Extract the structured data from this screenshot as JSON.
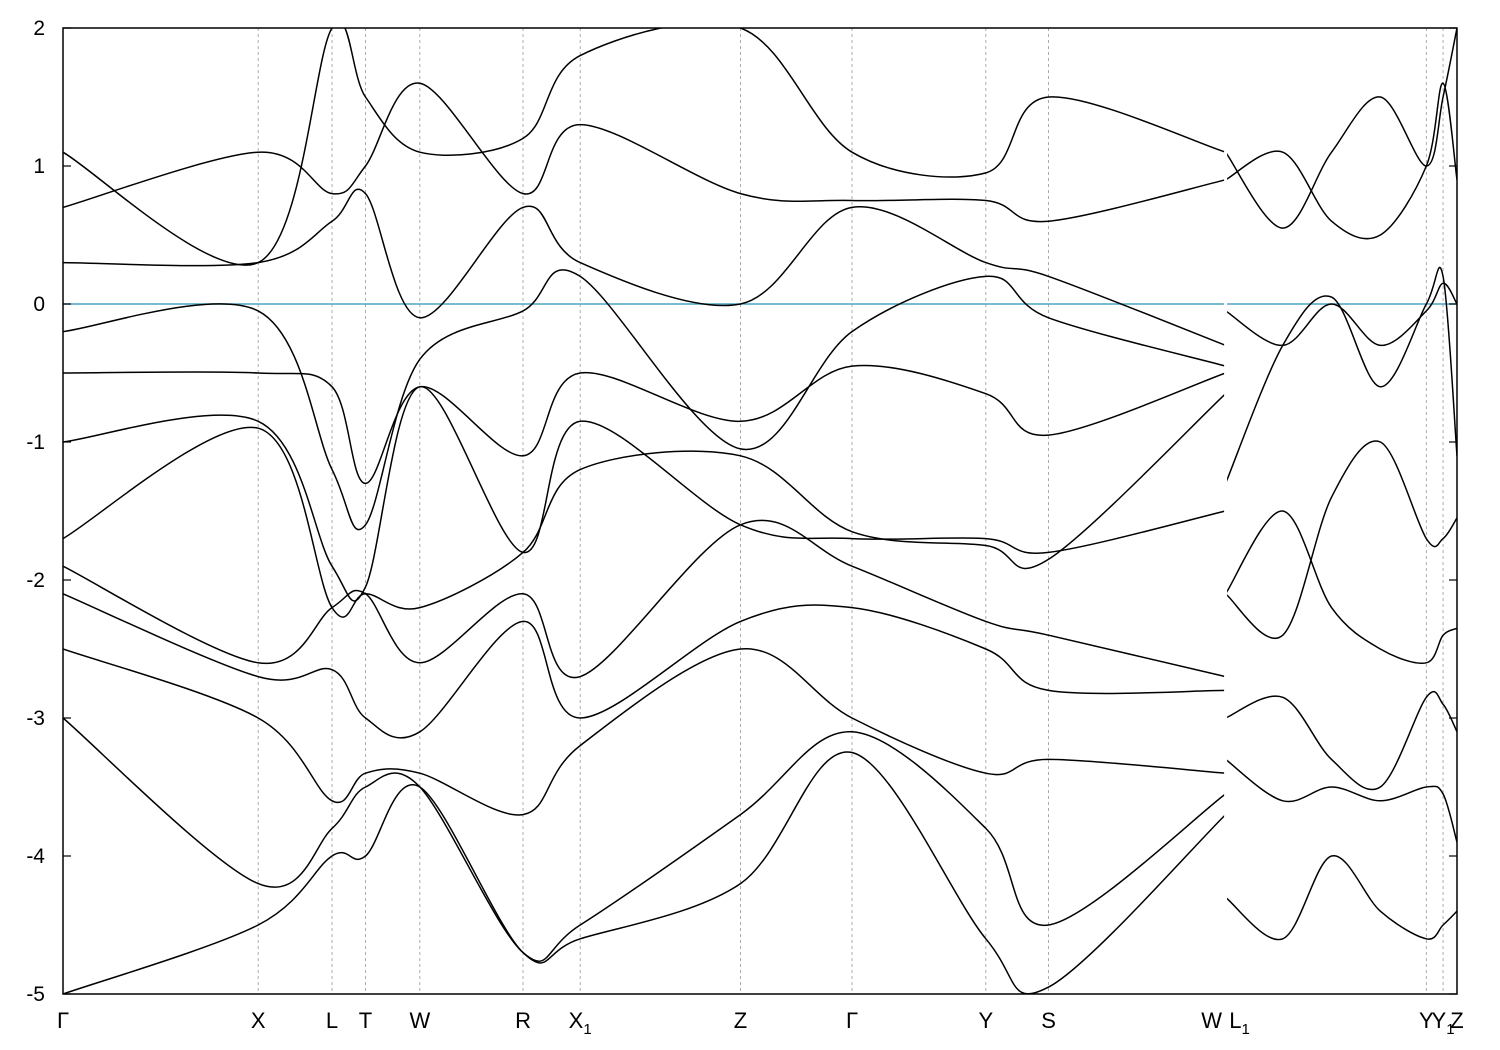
{
  "chart_data": {
    "type": "line",
    "title": "",
    "xlabel": "",
    "ylabel": "",
    "ylim": [
      -5,
      2
    ],
    "y_ticks": [
      "2",
      "1",
      "0",
      "-1",
      "-2",
      "-3",
      "-4",
      "-5"
    ],
    "y_tick_values": [
      2,
      1,
      0,
      -1,
      -2,
      -3,
      -4,
      -5
    ],
    "fermi_level": 0,
    "fermi_color": "#4aa6c4",
    "band_color": "#000000",
    "grid": "dashed vertical lines at high-symmetry points",
    "xlim": [
      0,
      100
    ],
    "kpoints": [
      {
        "label": "Γ",
        "sub": "",
        "x": 0
      },
      {
        "label": "X",
        "sub": "",
        "x": 14.0
      },
      {
        "label": "L",
        "sub": "",
        "x": 19.3
      },
      {
        "label": "T",
        "sub": "",
        "x": 21.7
      },
      {
        "label": "W",
        "sub": "",
        "x": 25.6
      },
      {
        "label": "R",
        "sub": "",
        "x": 33.0
      },
      {
        "label": "X",
        "sub": "1",
        "x": 37.1
      },
      {
        "label": "Z",
        "sub": "",
        "x": 48.6
      },
      {
        "label": "Γ",
        "sub": "",
        "x": 56.6
      },
      {
        "label": "Y",
        "sub": "",
        "x": 66.2
      },
      {
        "label": "S",
        "sub": "",
        "x": 70.7
      },
      {
        "label": "W",
        "sub": "",
        "x": 83.4
      },
      {
        "label": "L",
        "sub": "1",
        "x": 83.4
      },
      {
        "label": "Y",
        "sub": "",
        "x": 97.8
      },
      {
        "label": "Y",
        "sub": "1",
        "x": 99.0
      },
      {
        "label": "Z",
        "sub": "",
        "x": 100
      }
    ],
    "path_break_x": 83.4,
    "series": [
      {
        "values_x": [
          0,
          14.0,
          19.3,
          21.7,
          25.6,
          33.0,
          37.1,
          48.6,
          56.6,
          66.2,
          70.7,
          83.4
        ],
        "values": [
          -0.2,
          -0.05,
          -1.2,
          -1.6,
          -0.4,
          -0.05,
          0.2,
          -1.05,
          -0.2,
          0.2,
          -0.1,
          -0.45
        ]
      },
      {
        "values_x": [
          0,
          14.0,
          19.3,
          21.7,
          25.6,
          33.0,
          37.1,
          48.6,
          56.6,
          66.2,
          70.7,
          83.4
        ],
        "values": [
          0.3,
          0.3,
          0.6,
          0.8,
          -0.1,
          0.7,
          0.3,
          0.0,
          0.7,
          0.3,
          0.2,
          -0.3
        ]
      },
      {
        "values_x": [
          0,
          14.0,
          19.3,
          21.7,
          25.6,
          33.0,
          37.1,
          48.6,
          56.6,
          66.2,
          70.7,
          83.4
        ],
        "values": [
          -0.5,
          -0.5,
          -0.6,
          -1.3,
          -0.6,
          -1.1,
          -0.5,
          -0.85,
          -0.45,
          -0.65,
          -0.95,
          -0.5
        ]
      },
      {
        "values_x": [
          0,
          14.0,
          19.3,
          21.7,
          25.6,
          33.0,
          37.1,
          48.6,
          56.6,
          66.2,
          70.7,
          83.4
        ],
        "values": [
          -1.0,
          -0.85,
          -1.9,
          -2.05,
          -0.6,
          -1.8,
          -0.85,
          -1.6,
          -1.7,
          -1.7,
          -1.8,
          -1.5
        ]
      },
      {
        "values_x": [
          0,
          14.0,
          19.3,
          21.7,
          25.6,
          33.0,
          37.1,
          48.6,
          56.6,
          66.2,
          70.7,
          83.4
        ],
        "values": [
          -1.7,
          -0.9,
          -2.2,
          -2.1,
          -2.2,
          -1.8,
          -1.2,
          -1.1,
          -1.65,
          -1.75,
          -1.85,
          -0.65
        ]
      },
      {
        "values_x": [
          0,
          14.0,
          19.3,
          21.7,
          25.6,
          33.0,
          37.1,
          48.6,
          56.6,
          66.2,
          70.7,
          83.4
        ],
        "values": [
          -1.9,
          -2.6,
          -2.2,
          -2.1,
          -2.6,
          -2.1,
          -2.7,
          -1.6,
          -1.9,
          -2.3,
          -2.4,
          -2.7
        ]
      },
      {
        "values_x": [
          0,
          14.0,
          19.3,
          21.7,
          25.6,
          33.0,
          37.1,
          48.6,
          56.6,
          66.2,
          70.7,
          83.4
        ],
        "values": [
          -2.1,
          -2.7,
          -2.65,
          -3.0,
          -3.1,
          -2.3,
          -3.0,
          -2.3,
          -2.2,
          -2.5,
          -2.8,
          -2.8
        ]
      },
      {
        "values_x": [
          0,
          14.0,
          19.3,
          21.7,
          25.6,
          33.0,
          37.1,
          48.6,
          56.6,
          66.2,
          70.7,
          83.4
        ],
        "values": [
          -2.5,
          -3.0,
          -3.6,
          -3.4,
          -3.4,
          -3.7,
          -3.2,
          -2.5,
          -3.0,
          -3.4,
          -3.3,
          -3.4
        ]
      },
      {
        "values_x": [
          0,
          14.0,
          19.3,
          21.7,
          25.6,
          33.0,
          37.1,
          48.6,
          56.6,
          66.2,
          70.7,
          83.4
        ],
        "values": [
          -3.0,
          -4.2,
          -3.8,
          -3.5,
          -3.5,
          -4.7,
          -4.5,
          -3.7,
          -3.1,
          -3.8,
          -4.5,
          -3.55
        ]
      },
      {
        "values_x": [
          0,
          14.0,
          19.3,
          21.7,
          25.6,
          33.0,
          37.1,
          48.6,
          56.6,
          66.2,
          70.7,
          83.4
        ],
        "values": [
          -5.0,
          -4.5,
          -4.0,
          -4.0,
          -3.5,
          -4.7,
          -4.6,
          -4.2,
          -3.25,
          -4.6,
          -4.95,
          -3.7
        ]
      },
      {
        "values_x": [
          0,
          14.0,
          19.3,
          21.7,
          25.6,
          33.0,
          37.1,
          48.6,
          56.6,
          66.2,
          70.7,
          83.4
        ],
        "values": [
          1.1,
          0.3,
          2.0,
          1.5,
          1.1,
          1.2,
          1.8,
          2.0,
          1.1,
          0.95,
          1.5,
          1.1
        ]
      },
      {
        "values_x": [
          0,
          14.0,
          19.3,
          21.7,
          25.6,
          33.0,
          37.1,
          48.6,
          56.6,
          66.2,
          70.7,
          83.4
        ],
        "values": [
          0.7,
          1.1,
          0.8,
          1.0,
          1.6,
          0.8,
          1.3,
          0.8,
          0.75,
          0.75,
          0.6,
          0.9
        ]
      },
      {
        "values_x": [
          83.4,
          87.5,
          91.0,
          94.5,
          97.8,
          99.0,
          100
        ],
        "values": [
          -0.05,
          -0.3,
          0.0,
          -0.3,
          -0.05,
          0.15,
          0.0
        ]
      },
      {
        "values_x": [
          83.4,
          87.5,
          91.0,
          94.5,
          97.8,
          99.0,
          100
        ],
        "values": [
          -1.3,
          -0.3,
          0.05,
          -0.6,
          0.0,
          0.2,
          -1.1
        ]
      },
      {
        "values_x": [
          83.4,
          87.5,
          91.0,
          94.5,
          97.8,
          99.0,
          100
        ],
        "values": [
          -2.1,
          -2.4,
          -1.4,
          -1.0,
          -1.7,
          -1.7,
          -1.55
        ]
      },
      {
        "values_x": [
          83.4,
          87.5,
          91.0,
          94.5,
          97.8,
          99.0,
          100
        ],
        "values": [
          -2.1,
          -1.5,
          -2.2,
          -2.5,
          -2.6,
          -2.4,
          -2.35
        ]
      },
      {
        "values_x": [
          83.4,
          87.5,
          91.0,
          94.5,
          97.8,
          99.0,
          100
        ],
        "values": [
          -3.0,
          -2.85,
          -3.3,
          -3.5,
          -2.85,
          -2.9,
          -3.1
        ]
      },
      {
        "values_x": [
          83.4,
          87.5,
          91.0,
          94.5,
          97.8,
          99.0,
          100
        ],
        "values": [
          -3.3,
          -3.6,
          -3.5,
          -3.6,
          -3.5,
          -3.55,
          -3.9
        ]
      },
      {
        "values_x": [
          83.4,
          87.5,
          91.0,
          94.5,
          97.8,
          99.0,
          100
        ],
        "values": [
          -4.3,
          -4.6,
          -4.0,
          -4.4,
          -4.6,
          -4.5,
          -4.4
        ]
      },
      {
        "values_x": [
          83.4,
          87.5,
          91.0,
          94.5,
          97.8,
          99.0,
          100
        ],
        "values": [
          0.9,
          1.1,
          0.6,
          0.5,
          1.0,
          1.6,
          0.9
        ]
      },
      {
        "values_x": [
          83.4,
          87.5,
          91.0,
          94.5,
          97.8,
          99.0,
          100
        ],
        "values": [
          1.1,
          0.55,
          1.1,
          1.5,
          1.0,
          1.5,
          2.0
        ]
      }
    ]
  }
}
